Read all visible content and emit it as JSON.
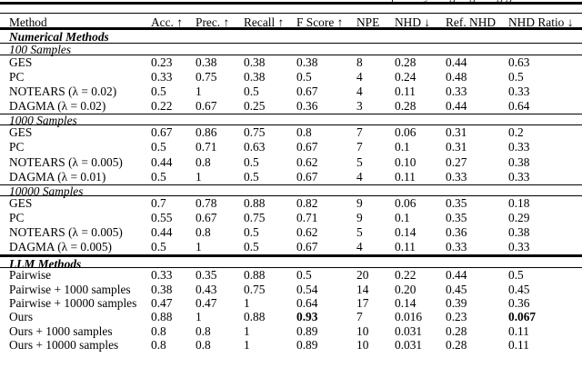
{
  "caption_fragment": {
    "letters": [
      "p",
      "y",
      "g",
      "g",
      "g",
      "g"
    ]
  },
  "table": {
    "columns": [
      "Method",
      "Acc. ↑",
      "Prec. ↑",
      "Recall ↑",
      "F Score ↑",
      "NPE",
      "NHD ↓",
      "Ref. NHD",
      "NHD Ratio ↓"
    ],
    "blocks": [
      {
        "type": "group",
        "label": "Numerical Methods"
      },
      {
        "type": "sub",
        "label": "100 Samples"
      },
      {
        "type": "row",
        "method": "GES",
        "values": [
          "0.23",
          "0.38",
          "0.38",
          "0.38",
          "8",
          "0.28",
          "0.44",
          "0.63"
        ]
      },
      {
        "type": "row",
        "method": "PC",
        "values": [
          "0.33",
          "0.75",
          "0.38",
          "0.5",
          "4",
          "0.24",
          "0.48",
          "0.5"
        ]
      },
      {
        "type": "row",
        "method": "NOTEARS (λ = 0.02)",
        "values": [
          "0.5",
          "1",
          "0.5",
          "0.67",
          "4",
          "0.11",
          "0.33",
          "0.33"
        ]
      },
      {
        "type": "row",
        "method": "DAGMA (λ = 0.02)",
        "values": [
          "0.22",
          "0.67",
          "0.25",
          "0.36",
          "3",
          "0.28",
          "0.44",
          "0.64"
        ]
      },
      {
        "type": "sub",
        "label": "1000 Samples"
      },
      {
        "type": "row",
        "method": "GES",
        "values": [
          "0.67",
          "0.86",
          "0.75",
          "0.8",
          "7",
          "0.06",
          "0.31",
          "0.2"
        ]
      },
      {
        "type": "row",
        "method": "PC",
        "values": [
          "0.5",
          "0.71",
          "0.63",
          "0.67",
          "7",
          "0.1",
          "0.31",
          "0.33"
        ]
      },
      {
        "type": "row",
        "method": "NOTEARS (λ = 0.005)",
        "values": [
          "0.44",
          "0.8",
          "0.5",
          "0.62",
          "5",
          "0.10",
          "0.27",
          "0.38"
        ]
      },
      {
        "type": "row",
        "method": "DAGMA (λ = 0.01)",
        "values": [
          "0.5",
          "1",
          "0.5",
          "0.67",
          "4",
          "0.11",
          "0.33",
          "0.33"
        ]
      },
      {
        "type": "sub",
        "label": "10000 Samples"
      },
      {
        "type": "row",
        "method": "GES",
        "values": [
          "0.7",
          "0.78",
          "0.88",
          "0.82",
          "9",
          "0.06",
          "0.35",
          "0.18"
        ]
      },
      {
        "type": "row",
        "method": "PC",
        "values": [
          "0.55",
          "0.67",
          "0.75",
          "0.71",
          "9",
          "0.1",
          "0.35",
          "0.29"
        ]
      },
      {
        "type": "row",
        "method": "NOTEARS (λ = 0.005)",
        "values": [
          "0.44",
          "0.8",
          "0.5",
          "0.62",
          "5",
          "0.14",
          "0.36",
          "0.38"
        ]
      },
      {
        "type": "row",
        "method": "DAGMA (λ = 0.005)",
        "values": [
          "0.5",
          "1",
          "0.5",
          "0.67",
          "4",
          "0.11",
          "0.33",
          "0.33"
        ]
      },
      {
        "type": "group",
        "label": "LLM Methods"
      },
      {
        "type": "row",
        "method": "Pairwise",
        "values": [
          "0.33",
          "0.35",
          "0.88",
          "0.5",
          "20",
          "0.22",
          "0.44",
          "0.5"
        ]
      },
      {
        "type": "row",
        "method": "Pairwise + 1000 samples",
        "values": [
          "0.38",
          "0.43",
          "0.75",
          "0.54",
          "14",
          "0.20",
          "0.45",
          "0.45"
        ]
      },
      {
        "type": "row",
        "method": "Pairwise + 10000 samples",
        "values": [
          "0.47",
          "0.47",
          "1",
          "0.64",
          "17",
          "0.14",
          "0.39",
          "0.36"
        ]
      },
      {
        "type": "row",
        "method": "Ours",
        "values": [
          "0.88",
          "1",
          "0.88",
          "0.93",
          "7",
          "0.016",
          "0.23",
          "0.067"
        ],
        "bold": [
          3,
          7
        ]
      },
      {
        "type": "row",
        "method": "Ours + 1000 samples",
        "values": [
          "0.8",
          "0.8",
          "1",
          "0.89",
          "10",
          "0.031",
          "0.28",
          "0.11"
        ]
      },
      {
        "type": "row",
        "method": "Ours + 10000 samples",
        "values": [
          "0.8",
          "0.8",
          "1",
          "0.89",
          "10",
          "0.031",
          "0.28",
          "0.11"
        ]
      }
    ]
  }
}
